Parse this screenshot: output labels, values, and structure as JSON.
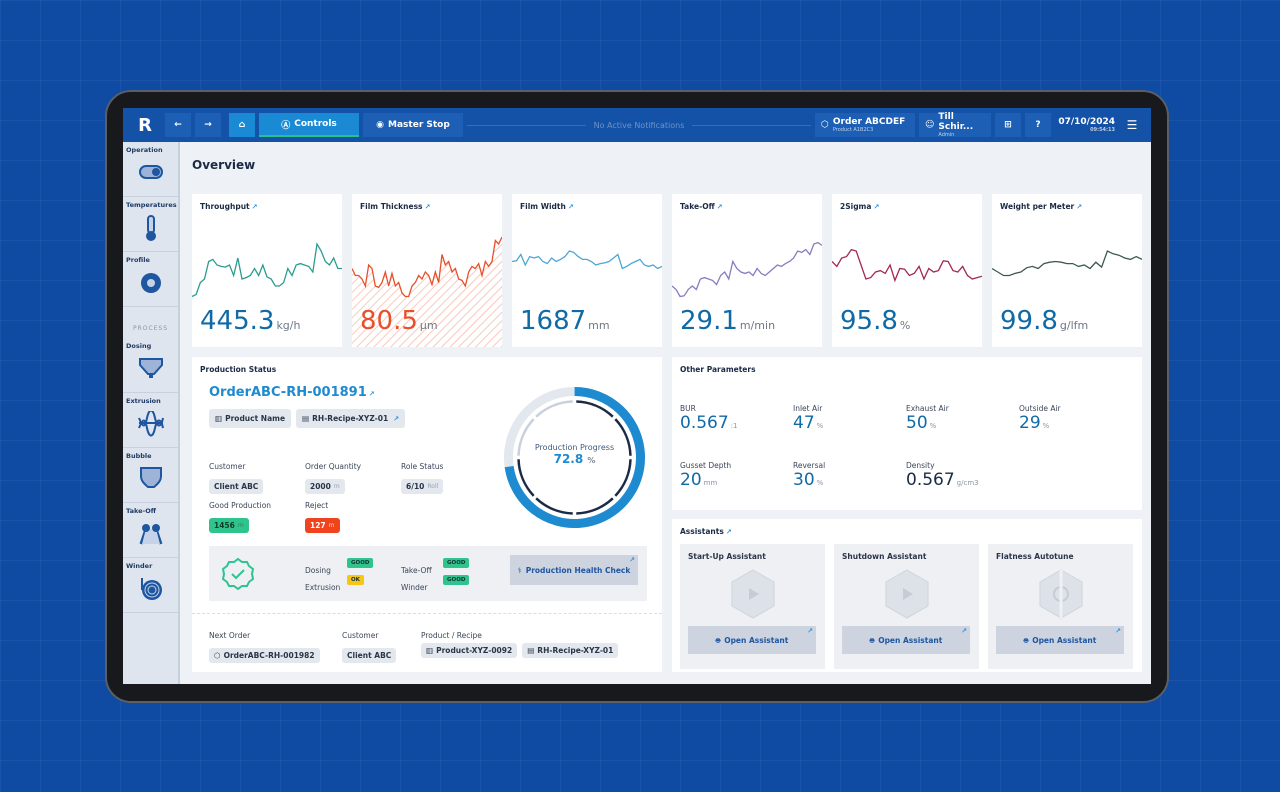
{
  "header": {
    "logo": "R",
    "controls": "Controls",
    "master_stop": "Master Stop",
    "notifications": "No Active Notifications",
    "order_title": "Order ABCDEF",
    "order_sub": "Product A1B2C3",
    "user_name": "Till Schir...",
    "user_role": "Admin",
    "date": "07/10/2024",
    "time": "09:54:13"
  },
  "sidebar": {
    "items": [
      {
        "label": "Operation",
        "icon": "toggle-icon"
      },
      {
        "label": "Temperatures",
        "icon": "thermometer-icon"
      },
      {
        "label": "Profile",
        "icon": "profile-icon"
      }
    ],
    "process_label": "PROCESS",
    "process_items": [
      {
        "label": "Dosing",
        "icon": "hopper-icon"
      },
      {
        "label": "Extrusion",
        "icon": "extruder-icon"
      },
      {
        "label": "Bubble",
        "icon": "bubble-icon"
      },
      {
        "label": "Take-Off",
        "icon": "takeoff-icon"
      },
      {
        "label": "Winder",
        "icon": "winder-icon"
      }
    ]
  },
  "page_title": "Overview",
  "kpis": [
    {
      "label": "Throughput",
      "value": "445.3",
      "unit": "kg/h",
      "color": "#2a9d8f",
      "values": [
        5,
        8,
        25,
        30,
        55,
        58,
        50,
        48,
        47,
        50,
        35,
        60,
        30,
        32,
        35,
        45,
        35,
        50,
        33,
        30,
        20,
        20,
        25,
        45,
        35,
        50,
        52,
        50,
        48,
        40,
        80,
        70,
        55,
        50,
        60,
        45,
        45
      ]
    },
    {
      "label": "Film Thickness",
      "value": "80.5",
      "unit": "µm",
      "color": "#e8502a",
      "alert": true,
      "values": [
        45,
        35,
        35,
        30,
        20,
        50,
        45,
        20,
        18,
        25,
        40,
        20,
        38,
        20,
        25,
        10,
        5,
        5,
        20,
        25,
        35,
        30,
        40,
        35,
        22,
        40,
        25,
        65,
        50,
        55,
        40,
        45,
        30,
        28,
        20,
        40,
        48,
        45,
        52,
        35,
        55,
        48,
        55,
        85,
        80,
        90
      ]
    },
    {
      "label": "Film Width",
      "value": "1687",
      "unit": "mm",
      "color": "#4aa7d6",
      "values": [
        55,
        56,
        65,
        50,
        62,
        60,
        62,
        55,
        52,
        60,
        55,
        58,
        62,
        70,
        68,
        62,
        58,
        58,
        55,
        50,
        52,
        53,
        55,
        60,
        65,
        45,
        48,
        52,
        55,
        58,
        50,
        48,
        50,
        45,
        48
      ]
    },
    {
      "label": "Take-Off",
      "value": "29.1",
      "unit": "m/min",
      "color": "#8a7bc0",
      "values": [
        20,
        15,
        5,
        6,
        15,
        20,
        15,
        30,
        32,
        30,
        28,
        22,
        35,
        40,
        30,
        55,
        45,
        40,
        38,
        40,
        35,
        45,
        38,
        35,
        40,
        45,
        50,
        48,
        52,
        55,
        60,
        70,
        68,
        72,
        65,
        80,
        82,
        78
      ]
    },
    {
      "label": "2Sigma",
      "value": "95.8",
      "unit": "%",
      "color": "#a3284f",
      "values": [
        55,
        48,
        60,
        62,
        72,
        70,
        50,
        30,
        32,
        40,
        42,
        38,
        50,
        28,
        45,
        44,
        35,
        38,
        48,
        30,
        45,
        40,
        42,
        56,
        55,
        42,
        40,
        48,
        35,
        30,
        32,
        34
      ]
    },
    {
      "label": "Weight per Meter",
      "value": "99.8",
      "unit": "g/lfm",
      "color": "#3d5a4f",
      "values": [
        45,
        40,
        35,
        35,
        38,
        40,
        46,
        48,
        45,
        52,
        54,
        55,
        54,
        52,
        52,
        48,
        50,
        45,
        54,
        47,
        70,
        66,
        64,
        60,
        58,
        62,
        58
      ]
    }
  ],
  "production": {
    "title": "Production Status",
    "order_id": "OrderABC-RH-001891",
    "product_name": "Product Name",
    "recipe": "RH-Recipe-XYZ-01",
    "customer_label": "Customer",
    "customer": "Client ABC",
    "qty_label": "Order Quantity",
    "qty": "2000",
    "qty_unit": "m",
    "role_label": "Role Status",
    "role": "6/10",
    "role_unit": "Roll",
    "good_label": "Good Production",
    "good": "1456",
    "good_unit": "m",
    "reject_label": "Reject",
    "reject": "127",
    "reject_unit": "m",
    "progress_label": "Production Progress",
    "progress": 72.8,
    "progress_text": "72.8",
    "progress_unit": "%",
    "health": [
      {
        "label": "Dosing",
        "status": "GOOD"
      },
      {
        "label": "Take-Off",
        "status": "GOOD"
      },
      {
        "label": "Extrusion",
        "status": "OK"
      },
      {
        "label": "Winder",
        "status": "GOOD"
      }
    ],
    "health_button": "Production Health Check",
    "next_order_label": "Next Order",
    "next_order": "OrderABC-RH-001982",
    "next_customer_label": "Customer",
    "next_customer": "Client ABC",
    "next_product_label": "Product / Recipe",
    "next_product": "Product-XYZ-0092",
    "next_recipe": "RH-Recipe-XYZ-01"
  },
  "params": {
    "title": "Other Parameters",
    "items": [
      {
        "label": "BUR",
        "value": "0.567",
        "unit": ":1"
      },
      {
        "label": "Inlet Air",
        "value": "47",
        "unit": "%"
      },
      {
        "label": "Exhaust Air",
        "value": "50",
        "unit": "%"
      },
      {
        "label": "Outside Air",
        "value": "29",
        "unit": "%"
      },
      {
        "label": "Gusset Depth",
        "value": "20",
        "unit": "mm"
      },
      {
        "label": "Reversal",
        "value": "30",
        "unit": "%"
      },
      {
        "label": "Density",
        "value": "0.567",
        "unit": "g/cm3"
      }
    ]
  },
  "assistants": {
    "title": "Assistants",
    "items": [
      {
        "title": "Start-Up Assistant",
        "button": "Open Assistant"
      },
      {
        "title": "Shutdown Assistant",
        "button": "Open Assistant"
      },
      {
        "title": "Flatness Autotune",
        "button": "Open Assistant"
      }
    ]
  }
}
